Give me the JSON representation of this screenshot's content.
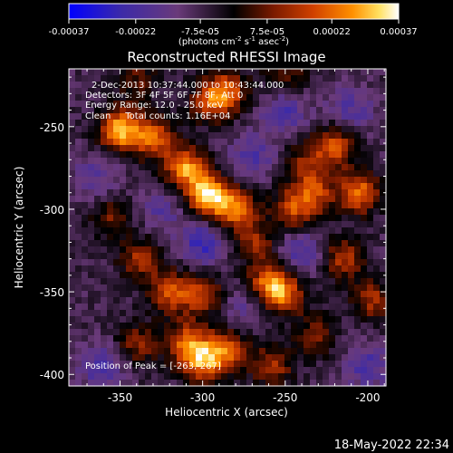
{
  "colorbar": {
    "tick_labels": [
      "-0.00037",
      "-0.00022",
      "-7.5e-05",
      "7.5e-05",
      "0.00022",
      "0.00037"
    ],
    "tick_values": [
      -0.00037,
      -0.00022,
      -7.5e-05,
      7.5e-05,
      0.00022,
      0.00037
    ],
    "range": [
      -0.00037,
      0.00037
    ],
    "units_main": "(photons cm",
    "units_exp1": "-2",
    "units_mid": " s",
    "units_exp2": "-1",
    "units_end": " asec",
    "units_exp3": "-2",
    "units_close": ")",
    "colors": [
      "#0000ff",
      "#3c2aa8",
      "#6a3a7a",
      "#000000",
      "#7a1a00",
      "#d04000",
      "#ff9000",
      "#ffe060",
      "#ffffff"
    ]
  },
  "chart_data": {
    "type": "heatmap",
    "title": "Reconstructed RHESSI Image",
    "xlabel": "Heliocentric X (arcsec)",
    "ylabel": "Heliocentric Y (arcsec)",
    "xlim": [
      -381,
      -189
    ],
    "ylim": [
      -407,
      -215
    ],
    "x_ticks": [
      -350,
      -300,
      -250,
      -200
    ],
    "x_tick_labels": [
      "-350",
      "-300",
      "-250",
      "-200"
    ],
    "y_ticks": [
      -250,
      -300,
      -350,
      -400
    ],
    "y_tick_labels": [
      "-250",
      "-300",
      "-350",
      "-400"
    ],
    "peak": [
      -263,
      -267
    ],
    "hotspots": [
      {
        "x": -350,
        "y": -252,
        "intensity": 0.95
      },
      {
        "x": -330,
        "y": -257,
        "intensity": 0.7
      },
      {
        "x": -310,
        "y": -275,
        "intensity": 0.85
      },
      {
        "x": -297,
        "y": -292,
        "intensity": 1.0
      },
      {
        "x": -280,
        "y": -300,
        "intensity": 0.75
      },
      {
        "x": -245,
        "y": -300,
        "intensity": 0.6
      },
      {
        "x": -232,
        "y": -290,
        "intensity": 0.55
      },
      {
        "x": -220,
        "y": -262,
        "intensity": 0.65
      },
      {
        "x": -205,
        "y": -290,
        "intensity": 0.75
      },
      {
        "x": -285,
        "y": -228,
        "intensity": 0.6
      },
      {
        "x": -295,
        "y": -235,
        "intensity": 0.55
      },
      {
        "x": -250,
        "y": -220,
        "intensity": 0.4
      },
      {
        "x": -340,
        "y": -222,
        "intensity": 0.35
      },
      {
        "x": -355,
        "y": -305,
        "intensity": 0.4
      },
      {
        "x": -338,
        "y": -330,
        "intensity": 0.5
      },
      {
        "x": -320,
        "y": -350,
        "intensity": 0.65
      },
      {
        "x": -300,
        "y": -352,
        "intensity": 0.55
      },
      {
        "x": -260,
        "y": -345,
        "intensity": 0.7
      },
      {
        "x": -250,
        "y": -352,
        "intensity": 0.6
      },
      {
        "x": -215,
        "y": -330,
        "intensity": 0.55
      },
      {
        "x": -197,
        "y": -355,
        "intensity": 0.5
      },
      {
        "x": -310,
        "y": -380,
        "intensity": 0.6
      },
      {
        "x": -300,
        "y": -392,
        "intensity": 0.8
      },
      {
        "x": -285,
        "y": -385,
        "intensity": 0.65
      },
      {
        "x": -340,
        "y": -382,
        "intensity": 0.45
      },
      {
        "x": -258,
        "y": -395,
        "intensity": 0.5
      },
      {
        "x": -232,
        "y": -377,
        "intensity": 0.4
      },
      {
        "x": -268,
        "y": -320,
        "intensity": 0.45
      },
      {
        "x": -238,
        "y": -272,
        "intensity": 0.4
      }
    ],
    "coldspots": [
      {
        "x": -300,
        "y": -320,
        "intensity": -0.7
      },
      {
        "x": -250,
        "y": -240,
        "intensity": -0.6
      },
      {
        "x": -270,
        "y": -268,
        "intensity": -0.5
      },
      {
        "x": -210,
        "y": -240,
        "intensity": -0.5
      },
      {
        "x": -240,
        "y": -325,
        "intensity": -0.55
      },
      {
        "x": -365,
        "y": -280,
        "intensity": -0.45
      },
      {
        "x": -360,
        "y": -395,
        "intensity": -0.6
      },
      {
        "x": -200,
        "y": -395,
        "intensity": -0.55
      },
      {
        "x": -275,
        "y": -360,
        "intensity": -0.4
      },
      {
        "x": -325,
        "y": -300,
        "intensity": -0.4
      }
    ]
  },
  "info": {
    "time_range": "2-Dec-2013 10:37:44.000 to 10:43:44.000",
    "detectors": "Detectors: 3F 4F 5F 6F 7F 8F, Att 0",
    "energy": "Energy Range: 12.0 - 25.0 keV",
    "method": "Clean     Total counts: 1.16E+04",
    "peak_label": "Position of Peak = [-263,-267]"
  },
  "footer": {
    "date": "18-May-2022 22:34"
  }
}
